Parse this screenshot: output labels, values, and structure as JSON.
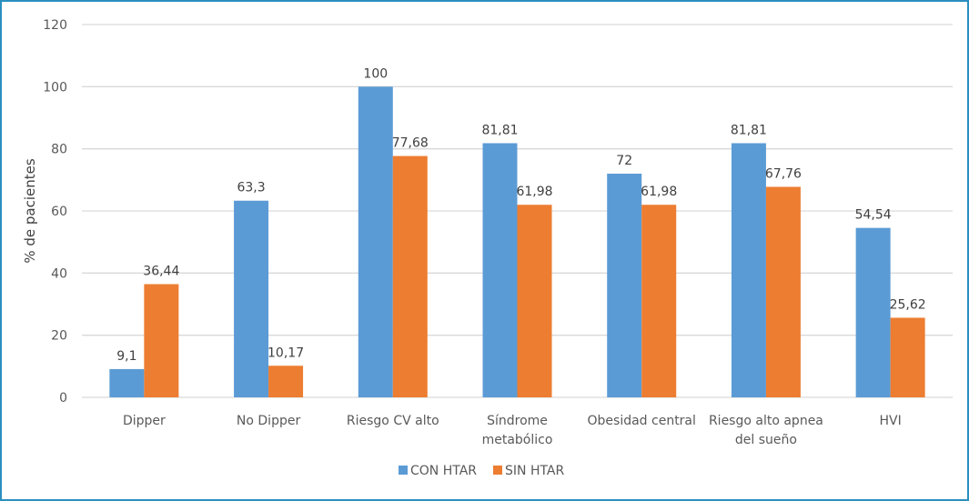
{
  "chart_data": {
    "type": "bar",
    "title": "",
    "xlabel": "",
    "ylabel": "% de pacientes",
    "ylim": [
      0,
      120
    ],
    "yticks": [
      0,
      20,
      40,
      60,
      80,
      100,
      120
    ],
    "grid": true,
    "legend_position": "bottom",
    "categories": [
      [
        "Dipper"
      ],
      [
        "No Dipper"
      ],
      [
        "Riesgo CV alto"
      ],
      [
        "Síndrome",
        "metabólico"
      ],
      [
        "Obesidad central"
      ],
      [
        "Riesgo alto apnea",
        "del sueño"
      ],
      [
        "HVI"
      ]
    ],
    "series": [
      {
        "name": "CON HTAR",
        "color": "#5b9bd5",
        "values": [
          9.1,
          63.3,
          100,
          81.81,
          72,
          81.81,
          54.54
        ],
        "labels": [
          "9,1",
          "63,3",
          "100",
          "81,81",
          "72",
          "81,81",
          "54,54"
        ]
      },
      {
        "name": "SIN HTAR",
        "color": "#ed7d31",
        "values": [
          36.44,
          10.17,
          77.68,
          61.98,
          61.98,
          67.76,
          25.62
        ],
        "labels": [
          "36,44",
          "10,17",
          "77,68",
          "61,98",
          "61,98",
          "67,76",
          "25,62"
        ]
      }
    ]
  }
}
